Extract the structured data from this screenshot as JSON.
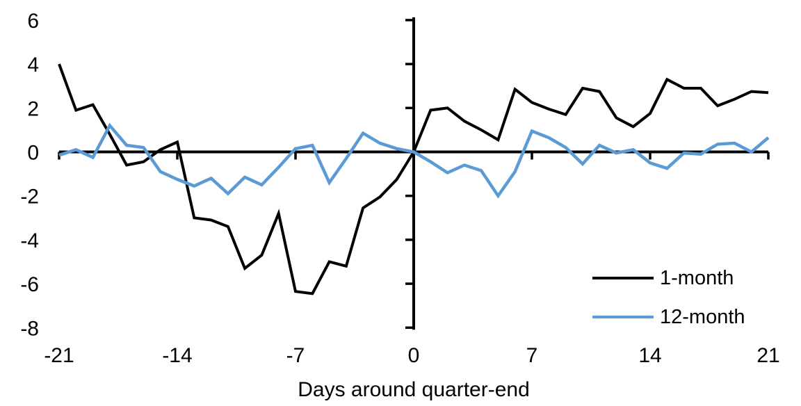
{
  "chart_data": {
    "type": "line",
    "title": "",
    "xlabel": "Days around quarter-end",
    "ylabel": "",
    "x": [
      -21,
      -20,
      -19,
      -18,
      -17,
      -16,
      -15,
      -14,
      -13,
      -12,
      -11,
      -10,
      -9,
      -8,
      -7,
      -6,
      -5,
      -4,
      -3,
      -2,
      -1,
      0,
      1,
      2,
      3,
      4,
      5,
      6,
      7,
      8,
      9,
      10,
      11,
      12,
      13,
      14,
      15,
      16,
      17,
      18,
      19,
      20,
      21
    ],
    "series": [
      {
        "name": "1-month",
        "color": "#000000",
        "values": [
          4.0,
          1.9,
          2.15,
          0.8,
          -0.6,
          -0.45,
          0.1,
          0.45,
          -3.0,
          -3.1,
          -3.4,
          -5.3,
          -4.7,
          -2.8,
          -6.35,
          -6.45,
          -5.0,
          -5.2,
          -2.55,
          -2.05,
          -1.25,
          0.0,
          1.9,
          2.0,
          1.4,
          1.0,
          0.55,
          2.85,
          2.25,
          1.95,
          1.7,
          2.9,
          2.75,
          1.55,
          1.15,
          1.75,
          3.3,
          2.9,
          2.9,
          2.1,
          2.4,
          2.75,
          2.7
        ]
      },
      {
        "name": "12-month",
        "color": "#5B9BD5",
        "values": [
          -0.15,
          0.1,
          -0.25,
          1.2,
          0.3,
          0.2,
          -0.9,
          -1.25,
          -1.55,
          -1.2,
          -1.9,
          -1.15,
          -1.5,
          -0.7,
          0.15,
          0.3,
          -1.4,
          -0.3,
          0.85,
          0.4,
          0.15,
          0.0,
          -0.45,
          -0.95,
          -0.6,
          -0.85,
          -2.0,
          -0.9,
          0.95,
          0.65,
          0.2,
          -0.55,
          0.3,
          -0.05,
          0.1,
          -0.5,
          -0.75,
          -0.05,
          -0.1,
          0.35,
          0.4,
          0.0,
          0.65
        ]
      }
    ],
    "xlim": [
      -21,
      21
    ],
    "ylim": [
      -8,
      6
    ],
    "xticks": [
      -21,
      -14,
      -7,
      0,
      7,
      14,
      21
    ],
    "yticks": [
      6,
      4,
      2,
      0,
      -2,
      -4,
      -6,
      -8
    ],
    "grid": false,
    "legend_position": "inside-bottom-right",
    "axis_color": "#000000",
    "x_axis_crosses_at": 0
  }
}
